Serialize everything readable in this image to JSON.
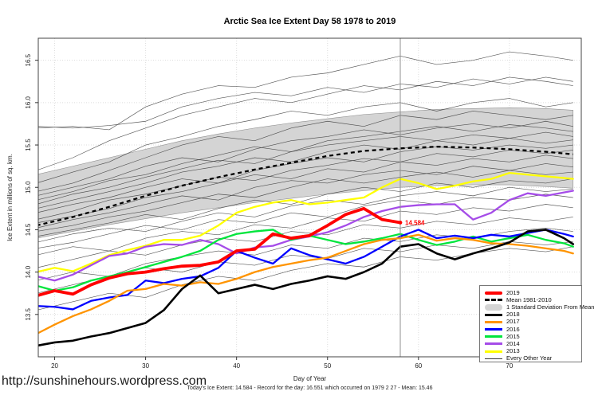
{
  "page": {
    "title": "Arctic Sea Ice Extent Day 58 1978 to 2019",
    "watermark_url": "http://sunshinehours.wordpress.com",
    "footer_caption": "Today's Ice Extent: 14.584  - Record for the day: 16.551 which occurred on 1979 2 27  - Mean: 15.46"
  },
  "legend": {
    "items": [
      {
        "label": "2019",
        "color": "#ff0000",
        "swatch": "thick-line"
      },
      {
        "label": "Mean 1981-2010",
        "color": "#000000",
        "swatch": "dashed-line"
      },
      {
        "label": "1 Standard Deviation From Mean",
        "color": "#d4d4d4",
        "swatch": "band"
      },
      {
        "label": "2018",
        "color": "#000000",
        "swatch": "line"
      },
      {
        "label": "2017",
        "color": "#ff9400",
        "swatch": "line"
      },
      {
        "label": "2016",
        "color": "#0000ff",
        "swatch": "line"
      },
      {
        "label": "2015",
        "color": "#00e53c",
        "swatch": "line"
      },
      {
        "label": "2014",
        "color": "#a54ce8",
        "swatch": "line"
      },
      {
        "label": "2013",
        "color": "#ffff00",
        "swatch": "line"
      },
      {
        "label": "Every Other Year",
        "color": "#3a3a3a",
        "swatch": "thin-line"
      }
    ]
  },
  "chart_data": {
    "type": "line",
    "title": "Arctic Sea Ice Extent Day 58 1978 to 2019",
    "xlabel": "Day of Year",
    "ylabel": "Ice Extent in millions of sq. km.",
    "xlim": [
      18.2,
      77.9
    ],
    "ylim": [
      13.0,
      16.76
    ],
    "x_ticks": [
      20,
      30,
      40,
      50,
      60,
      70
    ],
    "y_ticks": [
      13.5,
      14.0,
      14.5,
      15.0,
      15.5,
      16.0,
      16.5
    ],
    "grid": true,
    "legend_position": "bottom-right",
    "vertical_marker_day": 58,
    "annotation": {
      "day": 58,
      "value": 14.584,
      "label": "14.584",
      "color": "#ff0000"
    },
    "days": [
      18,
      20,
      22,
      24,
      26,
      28,
      30,
      32,
      34,
      36,
      38,
      40,
      42,
      44,
      46,
      48,
      50,
      52,
      54,
      56,
      58,
      60,
      62,
      64,
      66,
      68,
      70,
      72,
      74,
      76,
      77
    ],
    "days_coarse": [
      18,
      22,
      26,
      30,
      34,
      38,
      42,
      46,
      50,
      54,
      58,
      62,
      66,
      70,
      74,
      77
    ],
    "mean": {
      "name": "Mean 1981-2010",
      "color": "#000000",
      "style": "dashed",
      "values": [
        14.55,
        14.65,
        14.77,
        14.9,
        15.02,
        15.12,
        15.21,
        15.29,
        15.37,
        15.43,
        15.46,
        15.48,
        15.47,
        15.45,
        15.42,
        15.39
      ]
    },
    "band": {
      "name": "1 Standard Deviation From Mean",
      "fill": "#d4d4d4",
      "stroke": "#8f8f8f",
      "upper": [
        15.15,
        15.25,
        15.35,
        15.45,
        15.55,
        15.63,
        15.7,
        15.76,
        15.81,
        15.86,
        15.89,
        15.92,
        15.93,
        15.94,
        15.93,
        15.91
      ],
      "lower": [
        14.4,
        14.48,
        14.56,
        14.63,
        14.7,
        14.76,
        14.82,
        14.87,
        14.92,
        14.96,
        15.0,
        15.02,
        15.03,
        15.03,
        15.01,
        14.99
      ]
    },
    "series": [
      {
        "name": "2019",
        "color": "#ff0000",
        "width": 3.8,
        "x": [
          18,
          20,
          22,
          24,
          26,
          28,
          30,
          32,
          34,
          36,
          38,
          40,
          42,
          44,
          46,
          48,
          50,
          52,
          54,
          56,
          58
        ],
        "values": [
          13.72,
          13.78,
          13.74,
          13.85,
          13.93,
          13.98,
          14.0,
          14.04,
          14.07,
          14.08,
          14.12,
          14.25,
          14.27,
          14.45,
          14.4,
          14.43,
          14.55,
          14.68,
          14.75,
          14.62,
          14.584
        ]
      },
      {
        "name": "2018",
        "color": "#000000",
        "width": 2.6,
        "values": [
          13.13,
          13.17,
          13.19,
          13.24,
          13.28,
          13.34,
          13.4,
          13.55,
          13.8,
          13.96,
          13.75,
          13.8,
          13.85,
          13.8,
          13.86,
          13.9,
          13.95,
          13.92,
          14.0,
          14.1,
          14.3,
          14.33,
          14.22,
          14.15,
          14.22,
          14.28,
          14.35,
          14.48,
          14.5,
          14.4,
          14.33
        ]
      },
      {
        "name": "2017",
        "color": "#ff9400",
        "width": 2.3,
        "values": [
          13.27,
          13.38,
          13.48,
          13.56,
          13.66,
          13.78,
          13.8,
          13.86,
          13.84,
          13.88,
          13.86,
          13.92,
          14.0,
          14.06,
          14.1,
          14.14,
          14.17,
          14.25,
          14.33,
          14.38,
          14.4,
          14.44,
          14.37,
          14.4,
          14.38,
          14.34,
          14.33,
          14.31,
          14.28,
          14.25,
          14.22
        ]
      },
      {
        "name": "2016",
        "color": "#0000ff",
        "width": 2.3,
        "values": [
          13.6,
          13.59,
          13.56,
          13.66,
          13.7,
          13.73,
          13.9,
          13.87,
          13.92,
          13.95,
          14.05,
          14.25,
          14.17,
          14.1,
          14.28,
          14.2,
          14.15,
          14.1,
          14.18,
          14.3,
          14.42,
          14.5,
          14.4,
          14.43,
          14.4,
          14.44,
          14.42,
          14.46,
          14.5,
          14.45,
          14.42
        ]
      },
      {
        "name": "2015",
        "color": "#00e53c",
        "width": 2.3,
        "values": [
          13.84,
          13.78,
          13.82,
          13.9,
          13.95,
          14.0,
          14.06,
          14.12,
          14.18,
          14.25,
          14.38,
          14.45,
          14.48,
          14.5,
          14.38,
          14.43,
          14.38,
          14.33,
          14.36,
          14.4,
          14.45,
          14.38,
          14.32,
          14.36,
          14.42,
          14.36,
          14.4,
          14.44,
          14.38,
          14.34,
          14.3
        ]
      },
      {
        "name": "2014",
        "color": "#a54ce8",
        "width": 2.3,
        "values": [
          13.95,
          13.9,
          13.97,
          14.08,
          14.19,
          14.22,
          14.3,
          14.33,
          14.32,
          14.38,
          14.33,
          14.22,
          14.29,
          14.31,
          14.38,
          14.42,
          14.47,
          14.55,
          14.65,
          14.72,
          14.77,
          14.79,
          14.8,
          14.8,
          14.62,
          14.7,
          14.85,
          14.93,
          14.9,
          14.94,
          14.96
        ]
      },
      {
        "name": "2013",
        "color": "#ffff00",
        "width": 2.3,
        "values": [
          14.0,
          14.05,
          14.01,
          14.1,
          14.2,
          14.26,
          14.31,
          14.38,
          14.38,
          14.43,
          14.55,
          14.7,
          14.77,
          14.82,
          14.85,
          14.8,
          14.82,
          14.85,
          14.88,
          15.0,
          15.1,
          15.05,
          14.98,
          15.02,
          15.07,
          15.1,
          15.17,
          15.15,
          15.13,
          15.11,
          15.1
        ]
      }
    ],
    "other_years": {
      "name": "Every Other Year",
      "color": "#3a3a3a",
      "width": 0.65,
      "lines": [
        [
          15.7,
          15.72,
          15.68,
          15.95,
          16.1,
          16.2,
          16.18,
          16.3,
          16.35,
          16.45,
          16.55,
          16.45,
          16.5,
          16.6,
          16.55,
          16.5
        ],
        [
          15.72,
          15.7,
          15.73,
          15.78,
          15.95,
          16.05,
          16.12,
          16.08,
          16.18,
          16.12,
          16.22,
          16.18,
          16.28,
          16.22,
          16.3,
          16.25
        ],
        [
          15.2,
          15.35,
          15.55,
          15.7,
          15.85,
          15.95,
          16.05,
          16.0,
          16.1,
          16.2,
          16.15,
          16.25,
          16.2,
          16.3,
          16.25,
          16.2
        ],
        [
          15.05,
          15.18,
          15.3,
          15.5,
          15.6,
          15.72,
          15.8,
          15.9,
          15.85,
          15.95,
          16.0,
          15.9,
          16.0,
          16.05,
          15.95,
          16.0
        ],
        [
          14.95,
          15.05,
          15.2,
          15.35,
          15.5,
          15.6,
          15.55,
          15.7,
          15.78,
          15.72,
          15.85,
          15.8,
          15.9,
          15.85,
          15.8,
          15.85
        ],
        [
          14.9,
          15.0,
          15.1,
          15.25,
          15.35,
          15.3,
          15.45,
          15.55,
          15.6,
          15.68,
          15.62,
          15.7,
          15.75,
          15.7,
          15.78,
          15.72
        ],
        [
          14.85,
          14.95,
          15.08,
          15.15,
          15.28,
          15.38,
          15.48,
          15.42,
          15.55,
          15.6,
          15.66,
          15.72,
          15.66,
          15.74,
          15.7,
          15.66
        ],
        [
          14.8,
          14.92,
          15.0,
          15.12,
          15.22,
          15.32,
          15.28,
          15.42,
          15.5,
          15.55,
          15.6,
          15.55,
          15.62,
          15.58,
          15.65,
          15.6
        ],
        [
          14.75,
          14.85,
          14.95,
          15.05,
          15.18,
          15.25,
          15.35,
          15.3,
          15.42,
          15.5,
          15.45,
          15.55,
          15.5,
          15.58,
          15.52,
          15.56
        ],
        [
          14.7,
          14.8,
          14.88,
          15.0,
          15.1,
          15.05,
          15.2,
          15.28,
          15.35,
          15.3,
          15.42,
          15.48,
          15.44,
          15.5,
          15.46,
          15.5
        ],
        [
          14.62,
          14.72,
          14.85,
          14.92,
          15.02,
          15.12,
          15.08,
          15.2,
          15.26,
          15.34,
          15.3,
          15.4,
          15.36,
          15.44,
          15.4,
          15.44
        ],
        [
          14.58,
          14.66,
          14.75,
          14.88,
          14.95,
          15.05,
          15.15,
          15.1,
          15.22,
          15.18,
          15.3,
          15.26,
          15.34,
          15.3,
          15.38,
          15.34
        ],
        [
          14.52,
          14.62,
          14.7,
          14.8,
          14.9,
          14.85,
          15.0,
          15.08,
          15.05,
          15.15,
          15.2,
          15.15,
          15.25,
          15.2,
          15.28,
          15.24
        ],
        [
          14.48,
          14.55,
          14.65,
          14.72,
          14.82,
          14.92,
          14.88,
          15.0,
          15.1,
          15.05,
          15.12,
          15.18,
          15.12,
          15.2,
          15.15,
          15.18
        ],
        [
          14.42,
          14.5,
          14.58,
          14.68,
          14.62,
          14.75,
          14.85,
          14.8,
          14.92,
          15.0,
          14.95,
          15.05,
          15.0,
          15.08,
          15.05,
          15.1
        ],
        [
          14.35,
          14.45,
          14.52,
          14.48,
          14.6,
          14.7,
          14.65,
          14.78,
          14.85,
          14.8,
          14.9,
          14.95,
          14.9,
          15.0,
          14.95,
          14.98
        ],
        [
          14.28,
          14.35,
          14.45,
          14.55,
          14.5,
          14.62,
          14.58,
          14.7,
          14.65,
          14.78,
          14.85,
          14.8,
          14.88,
          14.85,
          14.92,
          14.88
        ],
        [
          14.2,
          14.3,
          14.25,
          14.4,
          14.48,
          14.44,
          14.56,
          14.52,
          14.64,
          14.6,
          14.72,
          14.68,
          14.76,
          14.72,
          14.8,
          14.76
        ],
        [
          14.05,
          14.15,
          14.25,
          14.2,
          14.32,
          14.4,
          14.36,
          14.48,
          14.44,
          14.56,
          14.52,
          14.6,
          14.56,
          14.64,
          14.6,
          14.65
        ],
        [
          13.9,
          14.0,
          13.95,
          14.1,
          14.18,
          14.25,
          14.2,
          14.32,
          14.28,
          14.4,
          14.36,
          14.44,
          14.4,
          14.48,
          14.52,
          14.48
        ],
        [
          13.75,
          13.85,
          13.95,
          14.05,
          14.0,
          14.12,
          14.08,
          14.2,
          14.16,
          14.28,
          14.24,
          14.32,
          14.28,
          14.36,
          14.32,
          14.36
        ],
        [
          13.55,
          13.65,
          13.75,
          13.7,
          13.85,
          13.95,
          13.9,
          14.02,
          14.1,
          14.06,
          14.18,
          14.14,
          14.22,
          14.28,
          14.24,
          14.3
        ]
      ]
    }
  }
}
